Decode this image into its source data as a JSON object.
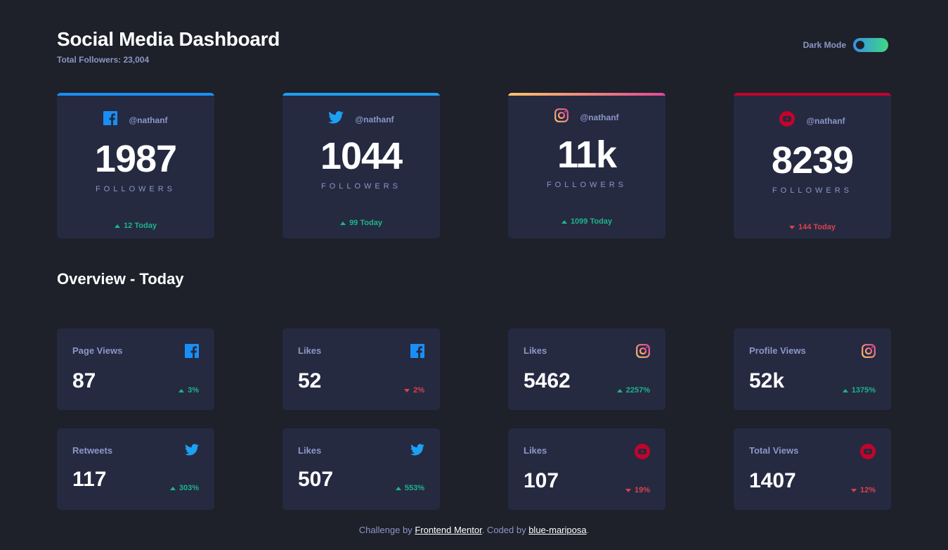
{
  "header": {
    "title": "Social Media Dashboard",
    "subtitle": "Total Followers: 23,004",
    "mode_label": "Dark Mode"
  },
  "colors": {
    "background": "#1e202a",
    "card": "#252a41",
    "muted": "#8b97c6",
    "up": "#1db489",
    "down": "#dc414c",
    "facebook": "#198ff5",
    "twitter": "#1ca0f2",
    "youtube": "#c4032a"
  },
  "followers": [
    {
      "platform": "facebook",
      "icon": "facebook-icon",
      "handle": "@nathanf",
      "count": "1987",
      "label": "FOLLOWERS",
      "delta": "12 Today",
      "trend": "up"
    },
    {
      "platform": "twitter",
      "icon": "twitter-icon",
      "handle": "@nathanf",
      "count": "1044",
      "label": "FOLLOWERS",
      "delta": "99 Today",
      "trend": "up"
    },
    {
      "platform": "instagram",
      "icon": "instagram-icon",
      "handle": "@nathanf",
      "count": "11k",
      "label": "FOLLOWERS",
      "delta": "1099 Today",
      "trend": "up"
    },
    {
      "platform": "youtube",
      "icon": "youtube-icon",
      "handle": "@nathanf",
      "count": "8239",
      "label": "FOLLOWERS",
      "delta": "144 Today",
      "trend": "down"
    }
  ],
  "overview": {
    "title": "Overview - Today",
    "cards": [
      {
        "metric": "Page Views",
        "icon": "facebook-icon",
        "value": "87",
        "pct": "3%",
        "trend": "up"
      },
      {
        "metric": "Likes",
        "icon": "facebook-icon",
        "value": "52",
        "pct": "2%",
        "trend": "down"
      },
      {
        "metric": "Likes",
        "icon": "instagram-icon",
        "value": "5462",
        "pct": "2257%",
        "trend": "up"
      },
      {
        "metric": "Profile Views",
        "icon": "instagram-icon",
        "value": "52k",
        "pct": "1375%",
        "trend": "up"
      },
      {
        "metric": "Retweets",
        "icon": "twitter-icon",
        "value": "117",
        "pct": "303%",
        "trend": "up"
      },
      {
        "metric": "Likes",
        "icon": "twitter-icon",
        "value": "507",
        "pct": "553%",
        "trend": "up"
      },
      {
        "metric": "Likes",
        "icon": "youtube-icon",
        "value": "107",
        "pct": "19%",
        "trend": "down"
      },
      {
        "metric": "Total Views",
        "icon": "youtube-icon",
        "value": "1407",
        "pct": "12%",
        "trend": "down"
      }
    ]
  },
  "footer": {
    "prefix": "Challenge by",
    "link1": "Frontend Mentor",
    "middle": ". Coded by",
    "link2": "blue-mariposa",
    "suffix": "."
  }
}
